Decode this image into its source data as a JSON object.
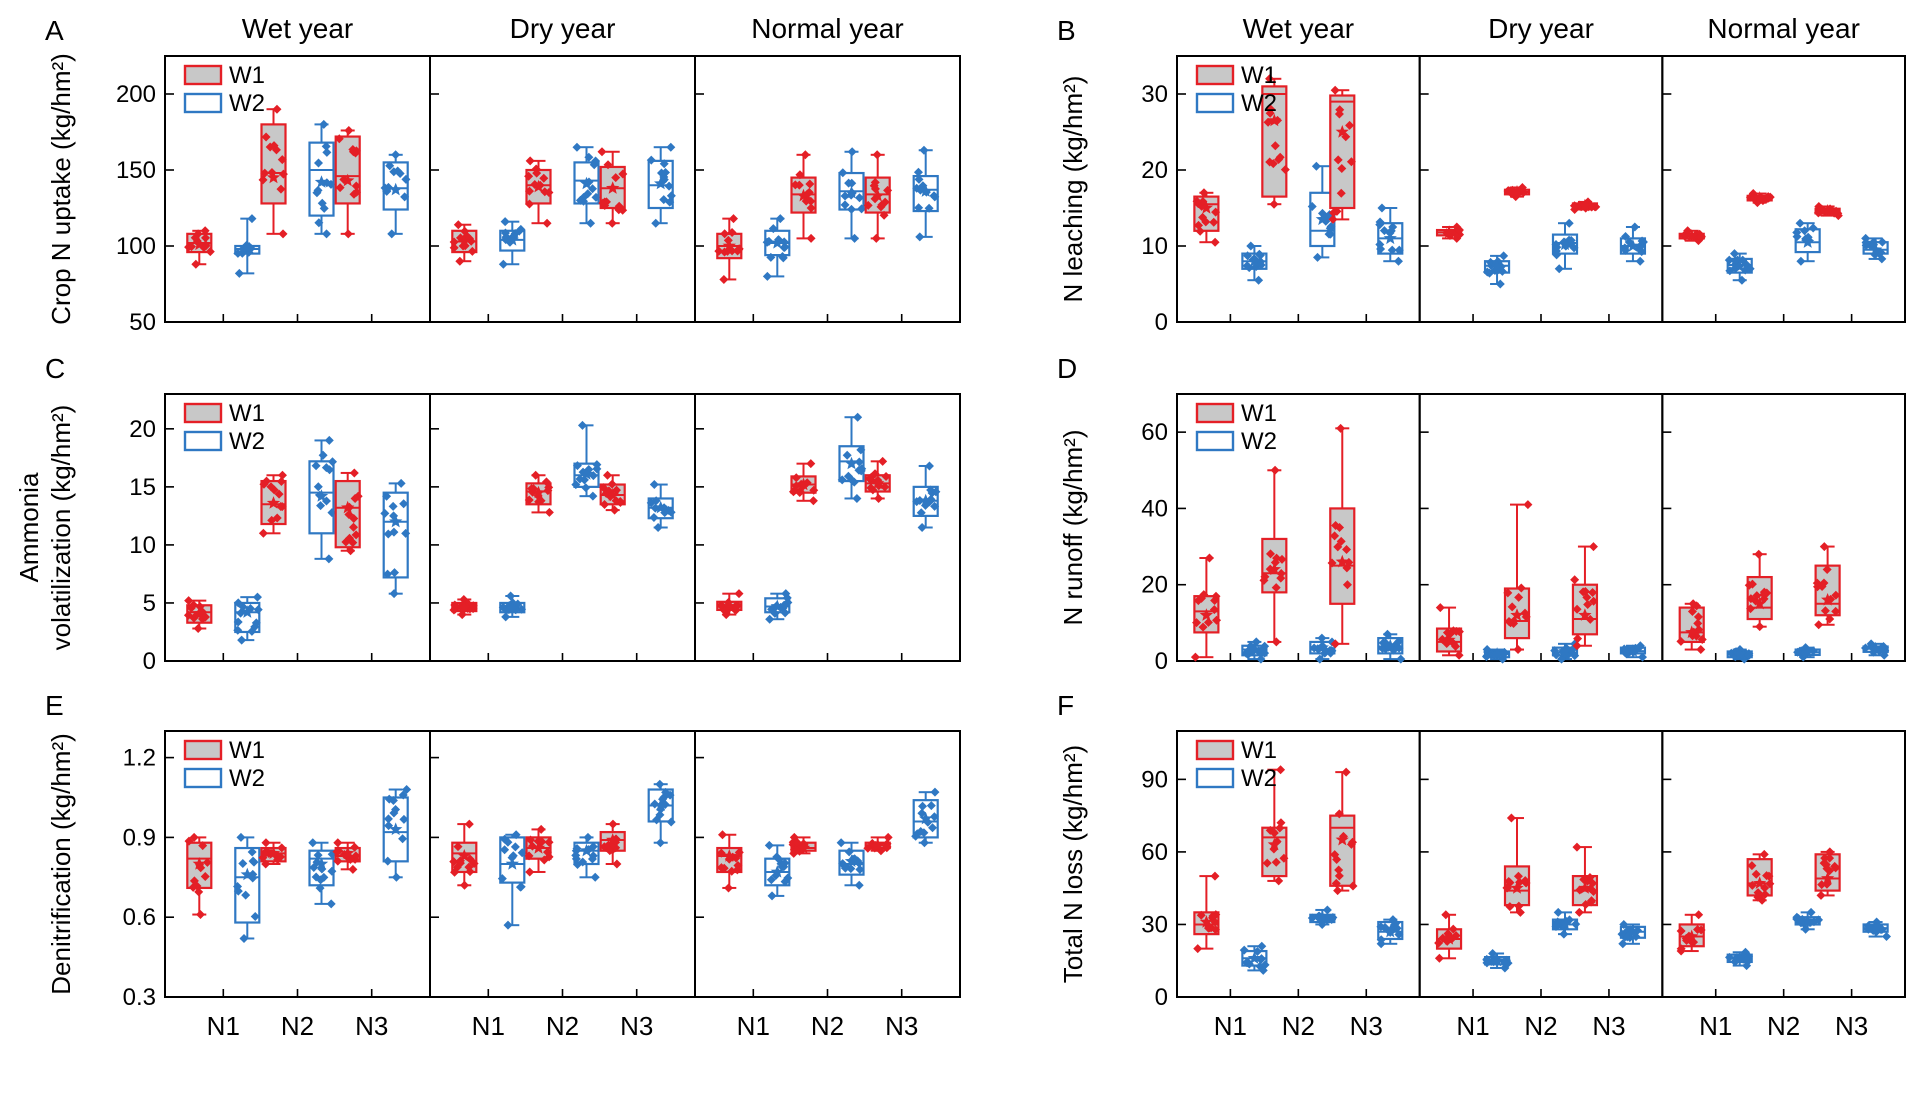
{
  "years": [
    "Wet year",
    "Dry year",
    "Normal year"
  ],
  "categories": [
    "N1",
    "N2",
    "N3"
  ],
  "legend": [
    "W1",
    "W2"
  ],
  "colors": {
    "W1": "#e41f26",
    "W2": "#2f78c3",
    "W1_fill": "#c8c8c8",
    "W2_fill": "#ffffff"
  },
  "chart_data": [
    {
      "letter": "A",
      "type": "box",
      "ylabel": "Crop N uptake (kg/hm²)",
      "ylim": [
        50,
        225
      ],
      "yticks": [
        50,
        100,
        150,
        200
      ],
      "groups": {
        "Wet year": {
          "W1": [
            [
              88,
              96,
              102,
              108,
              110,
              101
            ],
            [
              108,
              128,
              148,
              180,
              190,
              145
            ],
            [
              108,
              128,
              146,
              172,
              176,
              143
            ]
          ],
          "W2": [
            [
              82,
              95,
              98,
              100,
              118,
              99
            ],
            [
              108,
              120,
              150,
              168,
              180,
              142
            ],
            [
              108,
              124,
              138,
              155,
              160,
              137
            ]
          ]
        },
        "Dry year": {
          "W1": [
            [
              90,
              96,
              103,
              110,
              114,
              103
            ],
            [
              115,
              128,
              140,
              150,
              156,
              139
            ],
            [
              115,
              125,
              138,
              152,
              162,
              138
            ]
          ],
          "W2": [
            [
              88,
              97,
              104,
              110,
              116,
              104
            ],
            [
              115,
              128,
              143,
              155,
              165,
              141
            ],
            [
              115,
              125,
              140,
              156,
              165,
              141
            ]
          ]
        },
        "Normal year": {
          "W1": [
            [
              78,
              92,
              100,
              108,
              118,
              100
            ],
            [
              105,
              122,
              134,
              145,
              160,
              133
            ],
            [
              105,
              122,
              134,
              145,
              160,
              133
            ]
          ],
          "W2": [
            [
              80,
              94,
              102,
              110,
              118,
              102
            ],
            [
              105,
              124,
              136,
              148,
              162,
              135
            ],
            [
              106,
              123,
              137,
              146,
              163,
              136
            ]
          ]
        }
      }
    },
    {
      "letter": "B",
      "type": "box",
      "ylabel": "N leaching (kg/hm²)",
      "ylim": [
        0,
        35
      ],
      "yticks": [
        0,
        10,
        20,
        30
      ],
      "groups": {
        "Wet year": {
          "W1": [
            [
              10.5,
              12,
              15.5,
              16.5,
              17,
              15
            ],
            [
              15.5,
              16.5,
              30,
              31,
              32,
              26.5
            ],
            [
              13.5,
              15,
              29,
              29.8,
              30.5,
              25
            ]
          ],
          "W2": [
            [
              5.5,
              7,
              8,
              9,
              10,
              8
            ],
            [
              8.5,
              10,
              12,
              17,
              20.5,
              13.5
            ],
            [
              8,
              9,
              11,
              13,
              15,
              11
            ]
          ]
        },
        "Dry year": {
          "W1": [
            [
              11,
              11.4,
              11.8,
              12.1,
              12.5,
              11.8
            ],
            [
              16.5,
              16.8,
              17.1,
              17.4,
              17.7,
              17.1
            ],
            [
              14.8,
              15,
              15.3,
              15.6,
              15.8,
              15.3
            ]
          ],
          "W2": [
            [
              5,
              6.5,
              7.4,
              8,
              8.7,
              7.3
            ],
            [
              7,
              9,
              10.4,
              11.5,
              13,
              10.2
            ],
            [
              8,
              9,
              10,
              11,
              12.5,
              10
            ]
          ]
        },
        "Normal year": {
          "W1": [
            [
              10.7,
              11,
              11.3,
              11.6,
              12,
              11.3
            ],
            [
              15.7,
              16,
              16.3,
              16.6,
              16.9,
              16.3
            ],
            [
              14,
              14.3,
              14.6,
              14.9,
              15.2,
              14.6
            ]
          ],
          "W2": [
            [
              5.5,
              6.5,
              7.5,
              8.3,
              9,
              7.3
            ],
            [
              8,
              9.2,
              10.5,
              12.2,
              13,
              10.5
            ],
            [
              8.3,
              9,
              9.5,
              10.5,
              11,
              9.5
            ]
          ]
        }
      }
    },
    {
      "letter": "C",
      "type": "box",
      "ylabel": "Ammonia volatilization (kg/hm²)",
      "ylim": [
        0,
        23
      ],
      "yticks": [
        0,
        5,
        10,
        15,
        20
      ],
      "groups": {
        "Wet year": {
          "W1": [
            [
              2.8,
              3.3,
              4.2,
              4.8,
              5.2,
              4.1
            ],
            [
              11,
              11.8,
              13.5,
              15.5,
              16,
              13.6
            ],
            [
              9.5,
              9.8,
              13.2,
              15.5,
              16.2,
              13.2
            ]
          ],
          "W2": [
            [
              1.8,
              2.5,
              4.2,
              5,
              5.5,
              4.2
            ],
            [
              8.8,
              11,
              14.5,
              17.2,
              19,
              14.2
            ],
            [
              5.8,
              7.2,
              12,
              14.5,
              15.3,
              12
            ]
          ]
        },
        "Dry year": {
          "W1": [
            [
              4,
              4.3,
              4.6,
              5,
              5.3,
              4.6
            ],
            [
              12.8,
              13.5,
              14.6,
              15.3,
              16,
              14.5
            ],
            [
              13,
              13.5,
              14.3,
              15.2,
              16,
              14.3
            ]
          ],
          "W2": [
            [
              3.8,
              4.2,
              4.5,
              5,
              5.6,
              4.5
            ],
            [
              14.2,
              15,
              16,
              17,
              20.3,
              16.1
            ],
            [
              11.5,
              12.3,
              13.2,
              14,
              15.2,
              13.2
            ]
          ]
        },
        "Normal year": {
          "W1": [
            [
              4,
              4.4,
              4.8,
              5.1,
              5.8,
              4.7
            ],
            [
              13.8,
              14.5,
              15.2,
              15.9,
              17,
              15.2
            ],
            [
              14,
              14.6,
              15.3,
              16,
              17.2,
              15.3
            ]
          ],
          "W2": [
            [
              3.6,
              4.2,
              4.7,
              5.4,
              5.8,
              4.7
            ],
            [
              14,
              15.5,
              17.2,
              18.5,
              21,
              17
            ],
            [
              11.5,
              12.5,
              13.8,
              15,
              16.8,
              13.8
            ]
          ]
        }
      }
    },
    {
      "letter": "D",
      "type": "box",
      "ylabel": "N runoff (kg/hm²)",
      "ylim": [
        0,
        70
      ],
      "yticks": [
        0,
        20,
        40,
        60
      ],
      "groups": {
        "Wet year": {
          "W1": [
            [
              1,
              7.5,
              13,
              17,
              27,
              12
            ],
            [
              5,
              18,
              23,
              32,
              50,
              24
            ],
            [
              4.5,
              15,
              25,
              40,
              61,
              26
            ]
          ],
          "W2": [
            [
              0.5,
              1.5,
              3,
              4,
              5,
              3
            ],
            [
              0.5,
              2,
              3,
              5,
              6,
              3.5
            ],
            [
              0.5,
              2,
              3.8,
              6,
              7,
              4
            ]
          ]
        },
        "Dry year": {
          "W1": [
            [
              1.5,
              2.5,
              5,
              8.5,
              14,
              5.5
            ],
            [
              3,
              6,
              10.5,
              19,
              41,
              12
            ],
            [
              4,
              7,
              11,
              20,
              30,
              12
            ]
          ],
          "W2": [
            [
              0.5,
              1,
              1.8,
              2.5,
              3,
              1.8
            ],
            [
              0.5,
              1.5,
              2.2,
              3.5,
              4.5,
              2.5
            ],
            [
              1,
              2,
              2.6,
              3.5,
              4,
              2.6
            ]
          ]
        },
        "Normal year": {
          "W1": [
            [
              3,
              5,
              7.5,
              14,
              15,
              7.5
            ],
            [
              9,
              11,
              14,
              22,
              28,
              15
            ],
            [
              9.5,
              12,
              15,
              25,
              30,
              16
            ]
          ],
          "W2": [
            [
              0.5,
              1,
              1.8,
              2.5,
              3,
              1.8
            ],
            [
              1,
              1.6,
              2.3,
              3,
              3.5,
              2.3
            ],
            [
              1.5,
              2.4,
              3.2,
              3.8,
              4.5,
              3.2
            ]
          ]
        }
      }
    },
    {
      "letter": "E",
      "type": "box",
      "ylabel": "Denitrification (kg/hm²)",
      "ylim": [
        0.3,
        1.3
      ],
      "yticks": [
        0.3,
        0.6,
        0.9,
        1.2
      ],
      "groups": {
        "Wet year": {
          "W1": [
            [
              0.61,
              0.71,
              0.82,
              0.88,
              0.9,
              0.8
            ],
            [
              0.8,
              0.81,
              0.84,
              0.86,
              0.88,
              0.84
            ],
            [
              0.78,
              0.81,
              0.83,
              0.86,
              0.88,
              0.84
            ]
          ],
          "W2": [
            [
              0.52,
              0.58,
              0.75,
              0.86,
              0.9,
              0.76
            ],
            [
              0.65,
              0.72,
              0.82,
              0.85,
              0.88,
              0.8
            ],
            [
              0.75,
              0.81,
              0.92,
              1.05,
              1.08,
              0.93
            ]
          ]
        },
        "Dry year": {
          "W1": [
            [
              0.72,
              0.77,
              0.84,
              0.88,
              0.95,
              0.83
            ],
            [
              0.77,
              0.82,
              0.86,
              0.9,
              0.93,
              0.86
            ],
            [
              0.8,
              0.85,
              0.89,
              0.92,
              0.95,
              0.89
            ]
          ],
          "W2": [
            [
              0.57,
              0.73,
              0.8,
              0.9,
              0.91,
              0.8
            ],
            [
              0.75,
              0.8,
              0.85,
              0.88,
              0.9,
              0.85
            ],
            [
              0.88,
              0.96,
              1.02,
              1.08,
              1.1,
              1.02
            ]
          ]
        },
        "Normal year": {
          "W1": [
            [
              0.71,
              0.77,
              0.83,
              0.86,
              0.91,
              0.83
            ],
            [
              0.84,
              0.85,
              0.86,
              0.88,
              0.9,
              0.86
            ],
            [
              0.85,
              0.86,
              0.87,
              0.88,
              0.9,
              0.87
            ]
          ],
          "W2": [
            [
              0.68,
              0.72,
              0.77,
              0.82,
              0.87,
              0.77
            ],
            [
              0.72,
              0.76,
              0.8,
              0.85,
              0.88,
              0.81
            ],
            [
              0.88,
              0.9,
              0.96,
              1.04,
              1.07,
              0.97
            ]
          ]
        }
      }
    },
    {
      "letter": "F",
      "type": "box",
      "ylabel": "Total N loss (kg/hm²)",
      "ylim": [
        0,
        110
      ],
      "yticks": [
        0,
        30,
        60,
        90
      ],
      "groups": {
        "Wet year": {
          "W1": [
            [
              20,
              26,
              30,
              35,
              50,
              31
            ],
            [
              48,
              50,
              66,
              70,
              94,
              63
            ],
            [
              44,
              46,
              70,
              75,
              93,
              65
            ]
          ],
          "W2": [
            [
              11,
              13,
              16,
              19,
              21,
              16
            ],
            [
              30,
              31,
              33,
              34,
              36,
              33
            ],
            [
              22,
              24,
              27,
              31,
              32,
              27
            ]
          ]
        },
        "Dry year": {
          "W1": [
            [
              16,
              20,
              24,
              28,
              34,
              24
            ],
            [
              35,
              38,
              44,
              54,
              74,
              45
            ],
            [
              35,
              38,
              44,
              50,
              62,
              45
            ]
          ],
          "W2": [
            [
              12,
              13.5,
              15,
              16.5,
              18,
              15
            ],
            [
              26,
              28,
              30,
              32,
              35,
              30
            ],
            [
              22,
              24.5,
              27,
              29,
              30,
              27
            ]
          ]
        },
        "Normal year": {
          "W1": [
            [
              19,
              21,
              25,
              30,
              34,
              25
            ],
            [
              40,
              42,
              47,
              57,
              59,
              47
            ],
            [
              42,
              44,
              49,
              59,
              60,
              49
            ]
          ],
          "W2": [
            [
              13,
              14.5,
              16,
              17.5,
              18.5,
              16
            ],
            [
              28,
              30,
              31.5,
              33,
              35,
              31.5
            ],
            [
              25,
              27,
              28.5,
              30,
              31,
              28.5
            ]
          ]
        }
      }
    }
  ]
}
